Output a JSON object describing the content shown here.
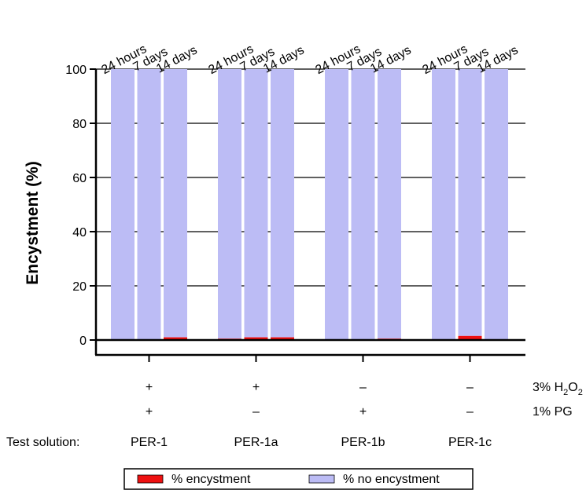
{
  "chart_data": {
    "type": "bar",
    "stacked": true,
    "ylabel": "Encystment (%)",
    "ylim": [
      0,
      100
    ],
    "yticks": [
      0,
      20,
      40,
      60,
      80,
      100
    ],
    "grid": true,
    "time_labels": [
      "24 hours",
      "7 days",
      "14 days"
    ],
    "groups": [
      {
        "name": "PER-1",
        "h2o2": "+",
        "pg": "+",
        "encystment": [
          0.0,
          0.0,
          1.0
        ]
      },
      {
        "name": "PER-1a",
        "h2o2": "+",
        "pg": "–",
        "encystment": [
          0.5,
          1.0,
          1.0
        ]
      },
      {
        "name": "PER-1b",
        "h2o2": "–",
        "pg": "+",
        "encystment": [
          0.0,
          0.0,
          0.5
        ]
      },
      {
        "name": "PER-1c",
        "h2o2": "–",
        "pg": "–",
        "encystment": [
          0.0,
          1.5,
          0.0
        ]
      }
    ],
    "series": [
      {
        "name": "% encystment",
        "color": "#ee1111"
      },
      {
        "name": "% no encystment",
        "color": "#bcbcf5"
      }
    ],
    "factor_labels": {
      "h2o2": "3% H",
      "h2o2_sub1": "2",
      "h2o2_mid": "O",
      "h2o2_sub2": "2",
      "pg": "1% PG"
    },
    "test_solution_label": "Test solution:",
    "legend_position": "bottom"
  }
}
